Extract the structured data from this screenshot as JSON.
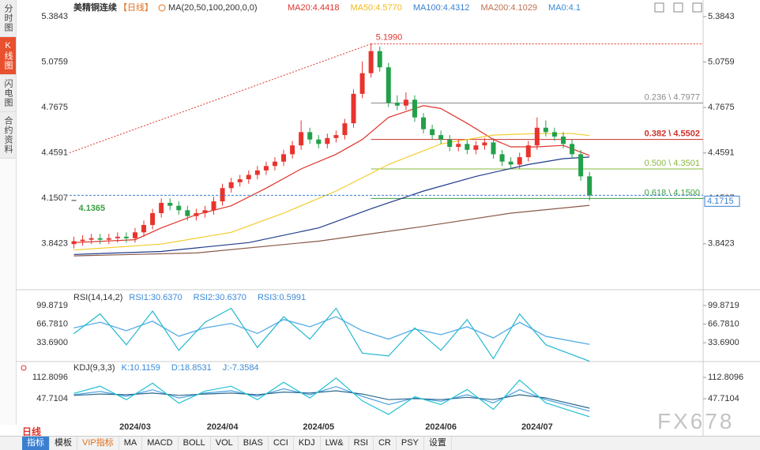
{
  "sidebar_tabs": [
    "分时图",
    "K线图",
    "闪电图",
    "合约资料"
  ],
  "header": {
    "symbol": "美精铜连续",
    "period": "【日线】",
    "indicator": "MA(20,50,100,200,0,0)"
  },
  "toolbar": {
    "period": "日线",
    "tabs": [
      "指标",
      "模板",
      "VIP指标",
      "MA",
      "MACD",
      "BOLL",
      "VOL",
      "BIAS",
      "CCI",
      "KDJ",
      "LW&",
      "RSI",
      "CR",
      "PSY",
      "设置"
    ]
  },
  "watermark": "FX678",
  "chart_data": [
    {
      "type": "candlestick",
      "categories": [
        null,
        null,
        null,
        null,
        null,
        null,
        null,
        "2024/03",
        null,
        null,
        null,
        null,
        null,
        null,
        null,
        null,
        null,
        "2024/04",
        null,
        null,
        null,
        null,
        null,
        null,
        null,
        null,
        null,
        null,
        "2024/05",
        null,
        null,
        null,
        null,
        null,
        null,
        null,
        null,
        null,
        null,
        null,
        null,
        null,
        "2024/06",
        null,
        null,
        null,
        null,
        null,
        null,
        null,
        null,
        null,
        null,
        "2024/07",
        null,
        null,
        null,
        null,
        null,
        null
      ],
      "xlim": [
        -0.5,
        72
      ],
      "ylim": [
        3.75,
        5.3843
      ],
      "yticks": [
        5.3843,
        5.0759,
        4.7675,
        4.4591,
        4.1507,
        3.8423
      ],
      "open": [
        3.84,
        3.86,
        3.87,
        3.88,
        3.87,
        3.88,
        3.89,
        3.88,
        3.92,
        3.97,
        4.05,
        4.12,
        4.1,
        4.07,
        4.03,
        4.05,
        4.07,
        4.13,
        4.22,
        4.26,
        4.28,
        4.31,
        4.34,
        4.37,
        4.4,
        4.45,
        4.51,
        4.6,
        4.55,
        4.52,
        4.56,
        4.58,
        4.66,
        4.86,
        5.0,
        5.15,
        5.04,
        4.8,
        4.78,
        4.82,
        4.7,
        4.62,
        4.58,
        4.55,
        4.5,
        4.52,
        4.48,
        4.51,
        4.53,
        4.45,
        4.4,
        4.38,
        4.43,
        4.51,
        4.63,
        4.6,
        4.57,
        4.52,
        4.45,
        4.3
      ],
      "high": [
        3.89,
        3.9,
        3.91,
        3.91,
        3.91,
        3.92,
        3.92,
        3.95,
        4.0,
        4.08,
        4.15,
        4.15,
        4.13,
        4.1,
        4.08,
        4.1,
        4.16,
        4.25,
        4.29,
        4.31,
        4.34,
        4.37,
        4.4,
        4.43,
        4.48,
        4.54,
        4.68,
        4.63,
        4.58,
        4.59,
        4.61,
        4.69,
        4.89,
        5.08,
        5.199,
        5.18,
        5.07,
        4.85,
        4.87,
        4.85,
        4.73,
        4.65,
        4.61,
        4.58,
        4.55,
        4.55,
        4.54,
        4.56,
        4.56,
        4.48,
        4.43,
        4.46,
        4.54,
        4.7,
        4.68,
        4.63,
        4.6,
        4.55,
        4.48,
        4.33
      ],
      "low": [
        3.81,
        3.83,
        3.84,
        3.84,
        3.84,
        3.85,
        3.85,
        3.85,
        3.89,
        3.94,
        4.02,
        4.07,
        4.04,
        4.0,
        4.0,
        4.02,
        4.04,
        4.1,
        4.19,
        4.23,
        4.25,
        4.28,
        4.31,
        4.34,
        4.37,
        4.42,
        4.48,
        4.52,
        4.49,
        4.49,
        4.53,
        4.55,
        4.63,
        4.83,
        4.97,
        5.01,
        4.77,
        4.75,
        4.75,
        4.67,
        4.59,
        4.55,
        4.52,
        4.47,
        4.47,
        4.45,
        4.45,
        4.48,
        4.42,
        4.37,
        4.35,
        4.35,
        4.4,
        4.48,
        4.57,
        4.54,
        4.49,
        4.42,
        4.27,
        4.1365
      ],
      "close": [
        3.86,
        3.87,
        3.88,
        3.87,
        3.88,
        3.89,
        3.88,
        3.92,
        3.97,
        4.05,
        4.12,
        4.1,
        4.07,
        4.03,
        4.05,
        4.07,
        4.13,
        4.22,
        4.26,
        4.28,
        4.31,
        4.34,
        4.37,
        4.4,
        4.45,
        4.51,
        4.6,
        4.55,
        4.52,
        4.56,
        4.58,
        4.66,
        4.86,
        5.0,
        5.15,
        5.04,
        4.8,
        4.78,
        4.82,
        4.7,
        4.62,
        4.58,
        4.55,
        4.5,
        4.52,
        4.48,
        4.51,
        4.53,
        4.45,
        4.4,
        4.38,
        4.43,
        4.51,
        4.63,
        4.6,
        4.57,
        4.52,
        4.45,
        4.3,
        4.17
      ],
      "up_color": "#e8332c",
      "down_color": "#23a04a",
      "series": [
        {
          "name": "MA20:4.4418",
          "color": "#e0342c",
          "label_color": "#e0342c",
          "x": [
            0,
            7,
            10,
            14,
            18,
            22,
            26,
            30,
            33,
            36,
            40,
            42,
            45,
            48,
            50,
            53,
            56,
            59
          ],
          "values": [
            3.85,
            3.87,
            3.95,
            4.04,
            4.1,
            4.22,
            4.35,
            4.45,
            4.55,
            4.7,
            4.78,
            4.76,
            4.66,
            4.55,
            4.5,
            4.5,
            4.51,
            4.4418
          ]
        },
        {
          "name": "MA50:4.5770",
          "color": "#f2cc2a",
          "label_color": "#f0b820",
          "x": [
            0,
            10,
            18,
            24,
            30,
            36,
            42,
            48,
            53,
            57,
            59
          ],
          "values": [
            3.8,
            3.84,
            3.92,
            4.05,
            4.2,
            4.38,
            4.52,
            4.58,
            4.59,
            4.59,
            4.577
          ]
        },
        {
          "name": "MA100:4.4312",
          "color": "#1f3a8c",
          "label_color": "#3a7fd0",
          "x": [
            0,
            10,
            20,
            28,
            34,
            40,
            46,
            52,
            56,
            59
          ],
          "values": [
            3.77,
            3.79,
            3.85,
            3.95,
            4.08,
            4.2,
            4.3,
            4.38,
            4.42,
            4.4312
          ]
        },
        {
          "name": "MA200:4.1029",
          "color": "#8a5a48",
          "label_color": "#c07050",
          "x": [
            0,
            14,
            28,
            40,
            50,
            59
          ],
          "values": [
            3.76,
            3.78,
            3.86,
            3.96,
            4.05,
            4.1029
          ]
        }
      ],
      "legend_extra": {
        "text": "MA0:4.1",
        "color": "#3a8ad8"
      },
      "fib_levels": [
        {
          "label": "0.236 \\ 4.7977",
          "value": 4.7977,
          "color": "#8a8a8a"
        },
        {
          "label": "0.382 \\ 4.5502",
          "value": 4.5502,
          "color": "#d0302a"
        },
        {
          "label": "0.500 \\ 4.3501",
          "value": 4.3501,
          "color": "#88b83c"
        },
        {
          "label": "0.618 \\ 4.1500",
          "value": 4.15,
          "color": "#3aa040"
        }
      ],
      "high_mark": {
        "value": 5.199,
        "label": "5.1990"
      },
      "low_mark": {
        "value": 4.1365
      },
      "last_price": {
        "value": 4.1715
      },
      "trendline": {
        "x": [
          -0.5,
          34
        ],
        "values": [
          4.46,
          5.199
        ]
      }
    },
    {
      "type": "line",
      "title": "RSI(14,14,2)",
      "ylim": [
        0,
        99.8719
      ],
      "yticks": [
        99.8719,
        {
          "value": 66.781,
          "label": "66.7810"
        },
        {
          "value": 33.69,
          "label": "33.6900"
        }
      ],
      "series": [
        {
          "name": "RSI1:30.6370",
          "color": "#5aaee8",
          "x": [
            0,
            3,
            6,
            9,
            12,
            15,
            18,
            21,
            24,
            27,
            30,
            33,
            36,
            39,
            42,
            45,
            48,
            51,
            54,
            59
          ],
          "values": [
            60,
            70,
            55,
            72,
            45,
            60,
            68,
            50,
            75,
            62,
            80,
            55,
            40,
            58,
            48,
            62,
            42,
            70,
            45,
            30.637
          ]
        },
        {
          "name": "RSI2:30.6370",
          "color": "#5aaee8",
          "x": [
            0,
            3,
            6,
            9,
            12,
            15,
            18,
            21,
            24,
            27,
            30,
            33,
            36,
            39,
            42,
            45,
            48,
            51,
            54,
            59
          ],
          "values": [
            60,
            70,
            55,
            72,
            45,
            60,
            68,
            50,
            75,
            62,
            80,
            55,
            40,
            58,
            48,
            62,
            42,
            70,
            45,
            30.637
          ]
        },
        {
          "name": "RSI3:0.5991",
          "color": "#22b8d0",
          "x": [
            0,
            3,
            6,
            9,
            12,
            15,
            18,
            21,
            24,
            27,
            30,
            33,
            36,
            39,
            42,
            45,
            48,
            51,
            54,
            59
          ],
          "values": [
            50,
            85,
            30,
            90,
            20,
            70,
            95,
            25,
            80,
            40,
            95,
            15,
            10,
            60,
            20,
            75,
            5,
            85,
            30,
            0.5991
          ]
        }
      ]
    },
    {
      "type": "line",
      "title": "KDJ(9,3,3)",
      "ylim": [
        -10,
        125
      ],
      "yticks": [
        112.8096,
        47.7104
      ],
      "series": [
        {
          "name": "K:10.1159",
          "color": "#4aa0e0",
          "x": [
            0,
            3,
            6,
            9,
            12,
            15,
            18,
            21,
            24,
            27,
            30,
            33,
            36,
            39,
            42,
            45,
            48,
            51,
            54,
            59
          ],
          "values": [
            60,
            70,
            55,
            75,
            50,
            65,
            72,
            55,
            78,
            60,
            85,
            55,
            30,
            50,
            40,
            60,
            35,
            75,
            45,
            10.1159
          ]
        },
        {
          "name": "D:18.8531",
          "color": "#2a6a90",
          "x": [
            0,
            3,
            6,
            9,
            12,
            15,
            18,
            21,
            24,
            27,
            30,
            33,
            36,
            39,
            42,
            45,
            48,
            51,
            54,
            59
          ],
          "values": [
            58,
            62,
            60,
            65,
            58,
            62,
            65,
            60,
            68,
            65,
            72,
            62,
            45,
            48,
            45,
            52,
            45,
            60,
            50,
            18.8531
          ]
        },
        {
          "name": "J:-7.3584",
          "color": "#20c0d0",
          "x": [
            0,
            3,
            6,
            9,
            12,
            15,
            18,
            21,
            24,
            27,
            30,
            33,
            36,
            39,
            42,
            45,
            48,
            51,
            54,
            59
          ],
          "values": [
            64,
            86,
            45,
            95,
            34,
            71,
            86,
            45,
            98,
            50,
            111,
            41,
            0,
            54,
            30,
            76,
            15,
            105,
            35,
            -7.3584
          ]
        }
      ]
    }
  ]
}
